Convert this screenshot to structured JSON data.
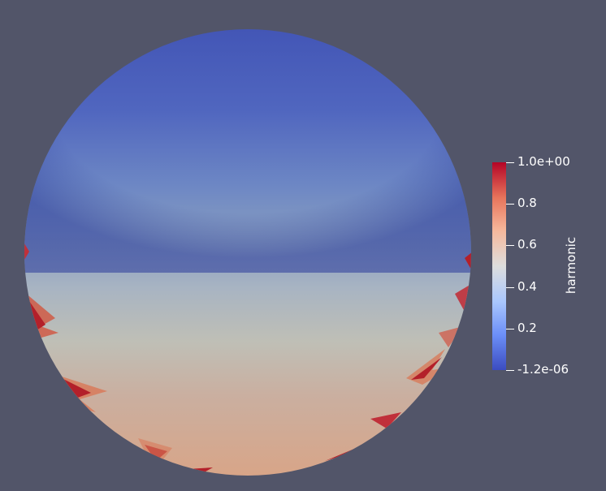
{
  "colors": {
    "background": "#525569",
    "colormap": [
      "#3b4cc0",
      "#6c8ff8",
      "#aac7fd",
      "#dddddd",
      "#f6b89c",
      "#e7745b",
      "#b40426"
    ]
  },
  "colorbar": {
    "title": "harmonic",
    "range": [
      -1.2e-06,
      1.0
    ],
    "ticks": [
      {
        "value": 1.0,
        "label": "1.0e+00"
      },
      {
        "value": 0.8,
        "label": "0.8"
      },
      {
        "value": 0.6,
        "label": "0.6"
      },
      {
        "value": 0.4,
        "label": "0.4"
      },
      {
        "value": 0.2,
        "label": "0.2"
      },
      {
        "value": -1.2e-06,
        "label": "-1.2e-06"
      }
    ]
  }
}
